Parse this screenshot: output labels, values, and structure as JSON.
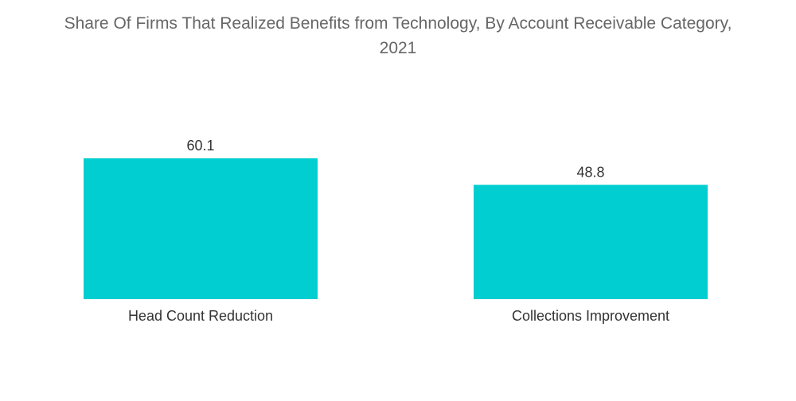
{
  "title_line1": "Share Of Firms That Realized Benefits from Technology, By Account Receivable Category,",
  "title_line2": "2021",
  "colors": {
    "bar": "#00ced1",
    "title": "#666666",
    "text": "#333333"
  },
  "chart_data": {
    "type": "bar",
    "title": "Share Of Firms That Realized Benefits from Technology, By Account Receivable Category, 2021",
    "categories": [
      "Head Count Reduction",
      "Collections Improvement"
    ],
    "values": [
      60.1,
      48.8
    ],
    "data_labels": [
      "60.1",
      "48.8"
    ],
    "xlabel": "",
    "ylabel": "",
    "ylim": [
      0,
      60.1
    ],
    "grid": false,
    "legend": "none"
  }
}
